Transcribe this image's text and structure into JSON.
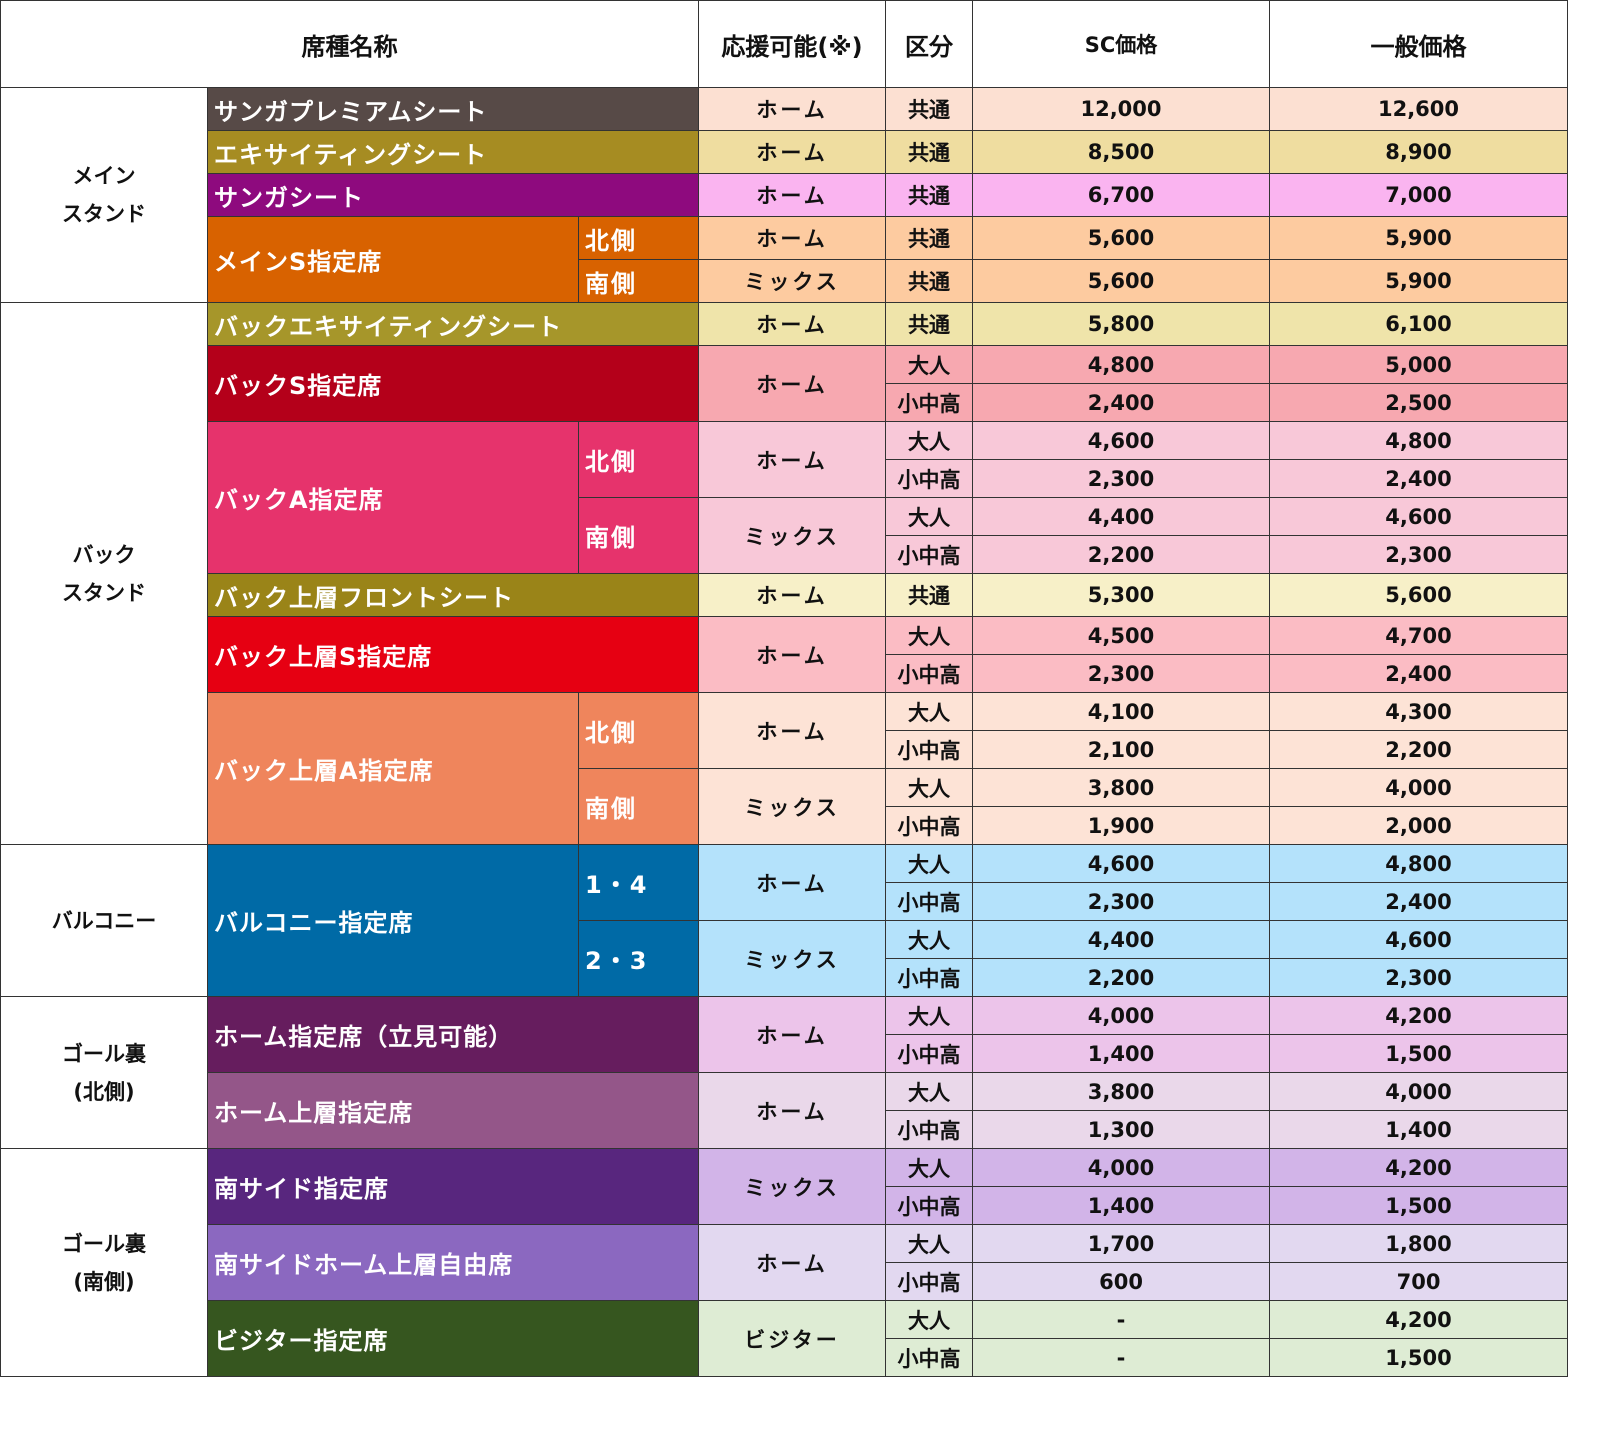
{
  "header": [
    "席種名称",
    "応援可能(※)",
    "区分",
    "SC価格",
    "一般価格"
  ],
  "groups": [
    {
      "area": [
        "メイン",
        "スタンド"
      ],
      "seats": [
        {
          "name": "サンガプレミアムシート",
          "parts": [
            {
              "support": "ホーム",
              "rows": [
                [
                  "共通",
                  "12,000",
                  "12,600"
                ]
              ]
            }
          ]
        },
        {
          "name": "エキサイティングシート",
          "parts": [
            {
              "support": "ホーム",
              "rows": [
                [
                  "共通",
                  "8,500",
                  "8,900"
                ]
              ]
            }
          ]
        },
        {
          "name": "サンガシート",
          "parts": [
            {
              "support": "ホーム",
              "rows": [
                [
                  "共通",
                  "6,700",
                  "7,000"
                ]
              ]
            }
          ]
        },
        {
          "name": "メインS指定席",
          "parts": [
            {
              "side": "北側",
              "support": "ホーム",
              "rows": [
                [
                  "共通",
                  "5,600",
                  "5,900"
                ]
              ]
            },
            {
              "side": "南側",
              "support": "ミックス",
              "rows": [
                [
                  "共通",
                  "5,600",
                  "5,900"
                ]
              ]
            }
          ]
        }
      ]
    },
    {
      "area": [
        "バック",
        "スタンド"
      ],
      "seats": [
        {
          "name": "バックエキサイティングシート",
          "parts": [
            {
              "support": "ホーム",
              "rows": [
                [
                  "共通",
                  "5,800",
                  "6,100"
                ]
              ]
            }
          ]
        },
        {
          "name": "バックS指定席",
          "parts": [
            {
              "support": "ホーム",
              "rows": [
                [
                  "大人",
                  "4,800",
                  "5,000"
                ],
                [
                  "小中高",
                  "2,400",
                  "2,500"
                ]
              ]
            }
          ]
        },
        {
          "name": "バックA指定席",
          "parts": [
            {
              "side": "北側",
              "support": "ホーム",
              "rows": [
                [
                  "大人",
                  "4,600",
                  "4,800"
                ],
                [
                  "小中高",
                  "2,300",
                  "2,400"
                ]
              ]
            },
            {
              "side": "南側",
              "support": "ミックス",
              "rows": [
                [
                  "大人",
                  "4,400",
                  "4,600"
                ],
                [
                  "小中高",
                  "2,200",
                  "2,300"
                ]
              ]
            }
          ]
        },
        {
          "name": "バック上層フロントシート",
          "parts": [
            {
              "support": "ホーム",
              "rows": [
                [
                  "共通",
                  "5,300",
                  "5,600"
                ]
              ]
            }
          ]
        },
        {
          "name": "バック上層S指定席",
          "parts": [
            {
              "support": "ホーム",
              "rows": [
                [
                  "大人",
                  "4,500",
                  "4,700"
                ],
                [
                  "小中高",
                  "2,300",
                  "2,400"
                ]
              ]
            }
          ]
        },
        {
          "name": "バック上層A指定席",
          "parts": [
            {
              "side": "北側",
              "support": "ホーム",
              "rows": [
                [
                  "大人",
                  "4,100",
                  "4,300"
                ],
                [
                  "小中高",
                  "2,100",
                  "2,200"
                ]
              ]
            },
            {
              "side": "南側",
              "support": "ミックス",
              "rows": [
                [
                  "大人",
                  "3,800",
                  "4,000"
                ],
                [
                  "小中高",
                  "1,900",
                  "2,000"
                ]
              ]
            }
          ]
        }
      ]
    },
    {
      "area": [
        "バルコニー"
      ],
      "seats": [
        {
          "name": "バルコニー指定席",
          "parts": [
            {
              "side": "1・4",
              "support": "ホーム",
              "rows": [
                [
                  "大人",
                  "4,600",
                  "4,800"
                ],
                [
                  "小中高",
                  "2,300",
                  "2,400"
                ]
              ]
            },
            {
              "side": "2・3",
              "support": "ミックス",
              "rows": [
                [
                  "大人",
                  "4,400",
                  "4,600"
                ],
                [
                  "小中高",
                  "2,200",
                  "2,300"
                ]
              ]
            }
          ]
        }
      ]
    },
    {
      "area": [
        "ゴール裏",
        "(北側)"
      ],
      "seats": [
        {
          "name": "ホーム指定席（立見可能）",
          "parts": [
            {
              "support": "ホーム",
              "rows": [
                [
                  "大人",
                  "4,000",
                  "4,200"
                ],
                [
                  "小中高",
                  "1,400",
                  "1,500"
                ]
              ]
            }
          ]
        },
        {
          "name": "ホーム上層指定席",
          "parts": [
            {
              "support": "ホーム",
              "rows": [
                [
                  "大人",
                  "3,800",
                  "4,000"
                ],
                [
                  "小中高",
                  "1,300",
                  "1,400"
                ]
              ]
            }
          ]
        }
      ]
    },
    {
      "area": [
        "ゴール裏",
        "(南側)"
      ],
      "seats": [
        {
          "name": "南サイド指定席",
          "parts": [
            {
              "support": "ミックス",
              "rows": [
                [
                  "大人",
                  "4,000",
                  "4,200"
                ],
                [
                  "小中高",
                  "1,400",
                  "1,500"
                ]
              ]
            }
          ]
        },
        {
          "name": "南サイドホーム上層自由席",
          "parts": [
            {
              "support": "ホーム",
              "rows": [
                [
                  "大人",
                  "1,700",
                  "1,800"
                ],
                [
                  "小中高",
                  "600",
                  "700"
                ]
              ]
            }
          ]
        },
        {
          "name": "ビジター指定席",
          "parts": [
            {
              "support": "ビジター",
              "rows": [
                [
                  "大人",
                  "-",
                  "4,200"
                ],
                [
                  "小中高",
                  "-",
                  "1,500"
                ]
              ]
            }
          ]
        }
      ]
    }
  ]
}
